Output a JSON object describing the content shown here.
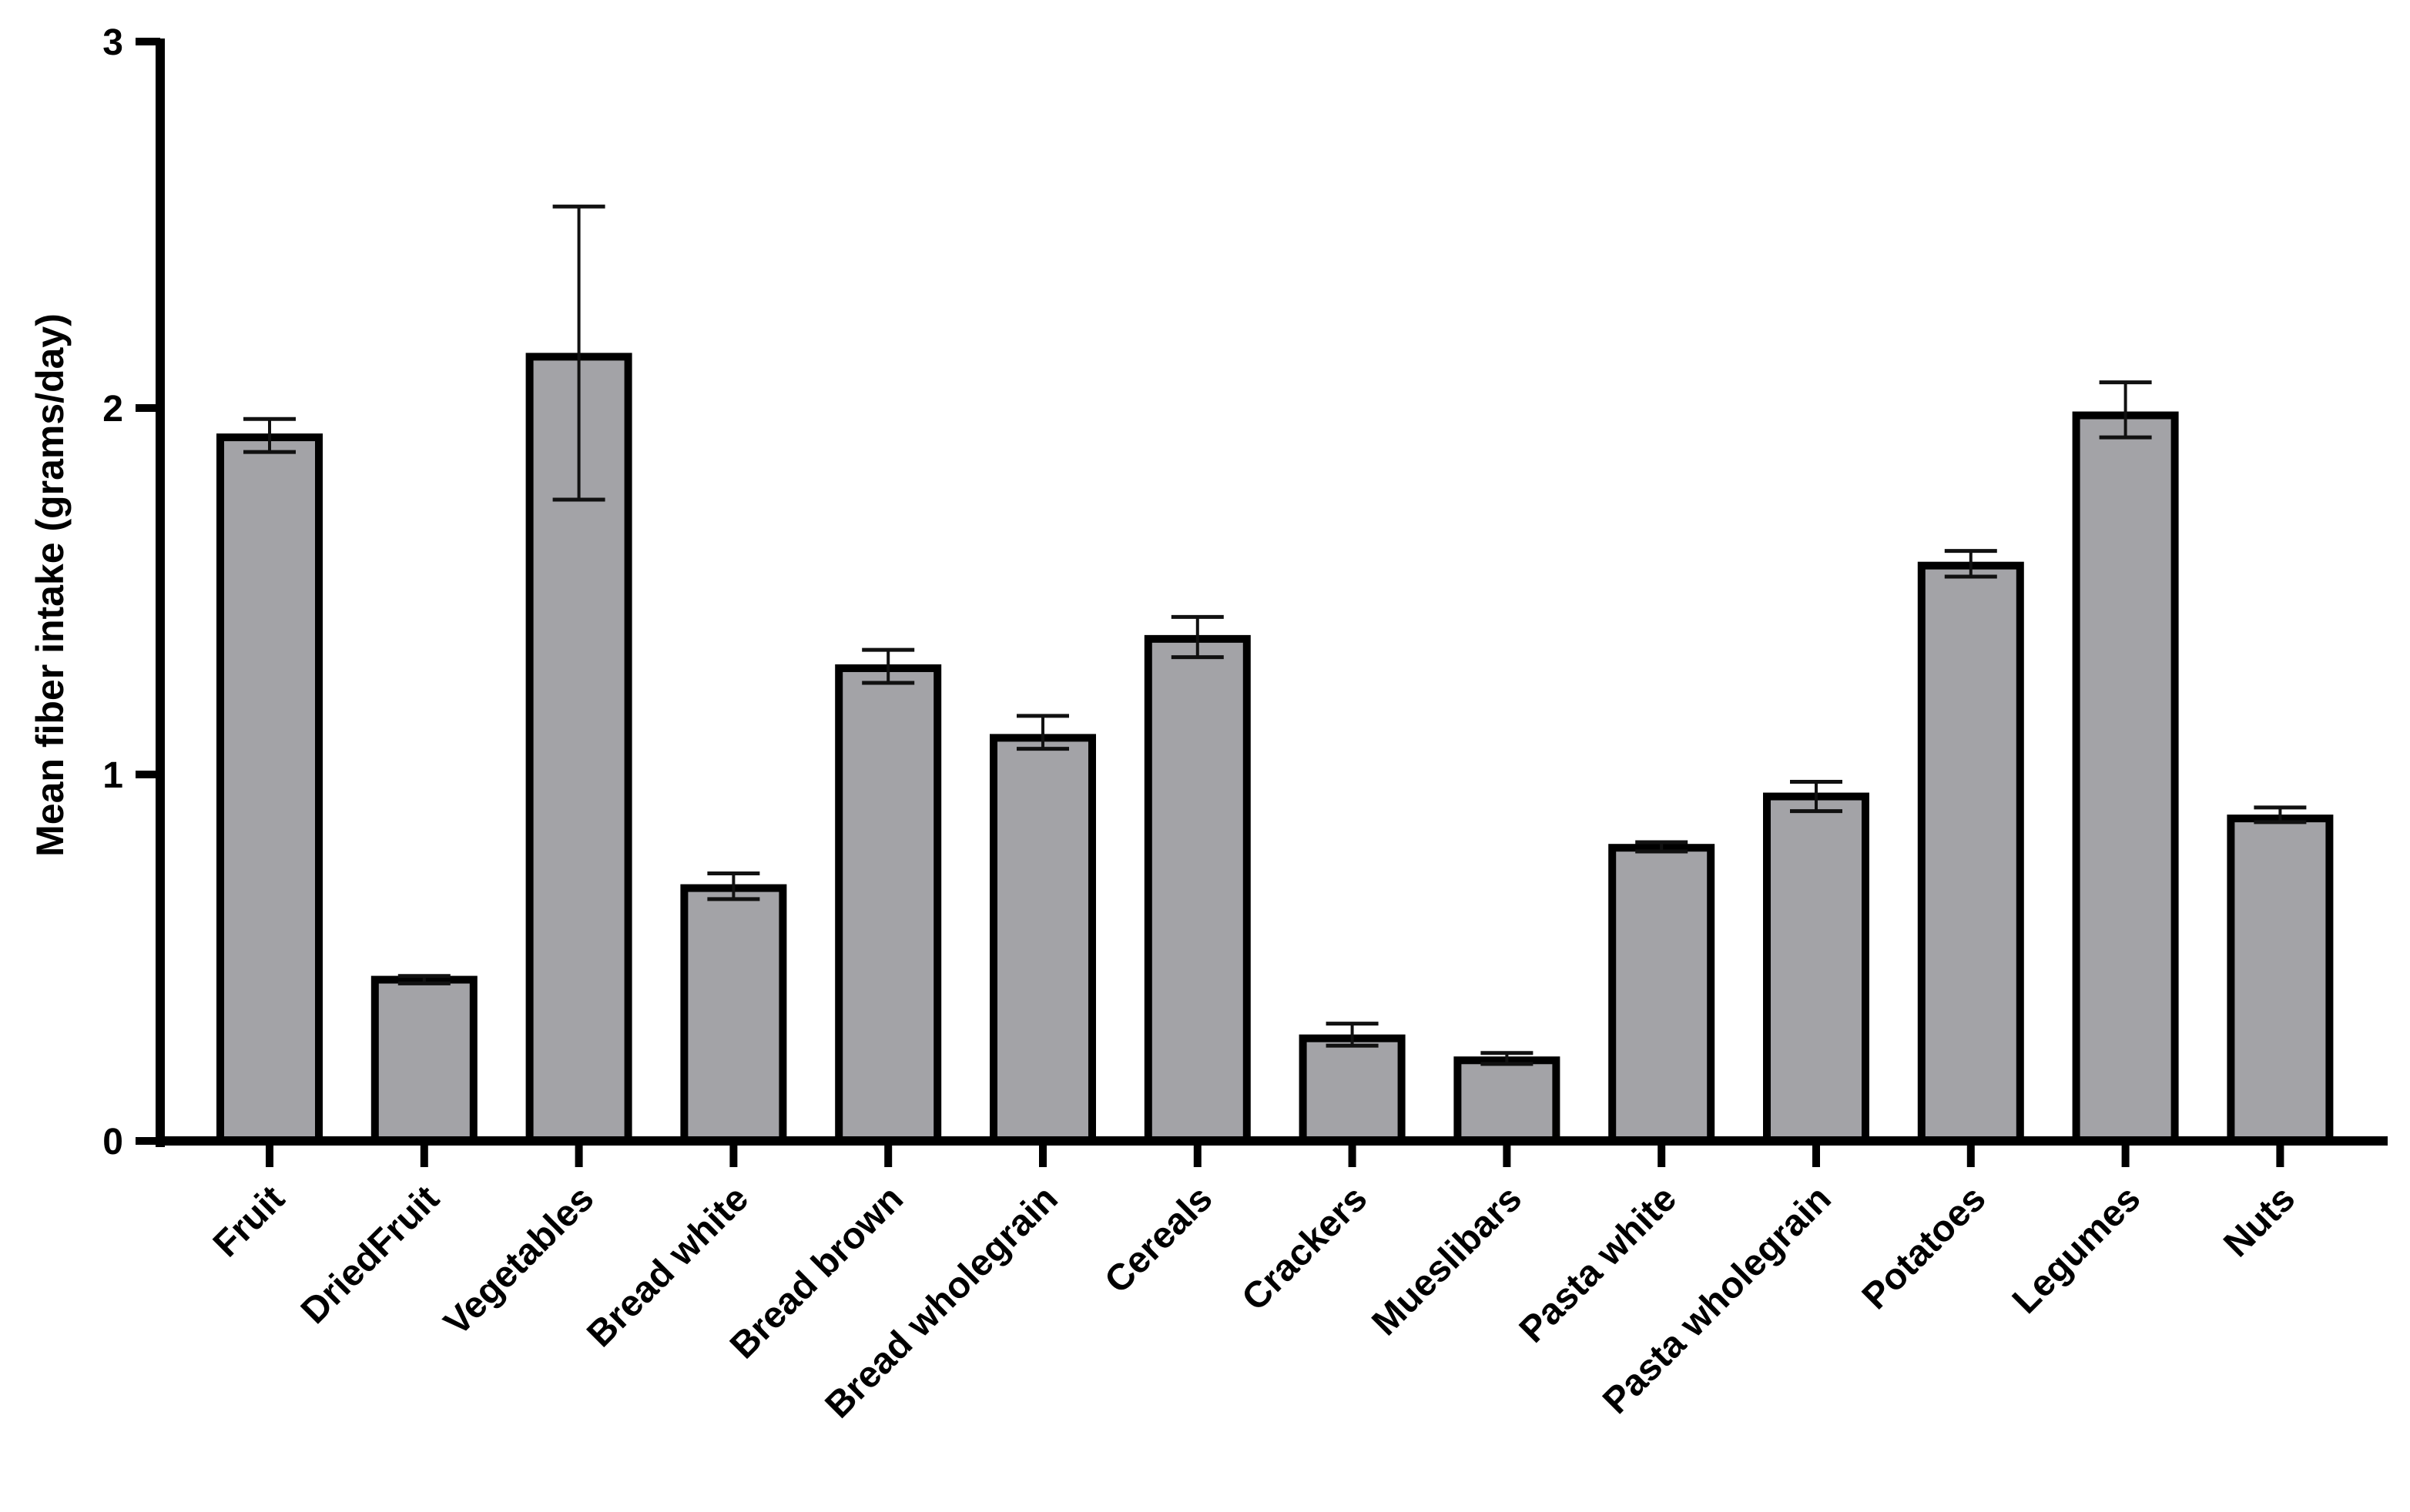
{
  "chart_data": {
    "type": "bar",
    "title": "",
    "xlabel": "",
    "ylabel": "Mean fiber  intake (grams/day)",
    "ylim": [
      0,
      3
    ],
    "yticks": [
      "0",
      "1",
      "2",
      "3"
    ],
    "grid": false,
    "bar_color": "#a3a3a7",
    "edge_color": "#000000",
    "categories": [
      "Fruit",
      "DriedFruit",
      "Vegetables",
      "Bread white",
      "Bread brown",
      "Bread wholegrain",
      "Cereals",
      "Crackers",
      "Mueslibars",
      "Pasta white",
      "Pasta wholegrain",
      "Potatoes",
      "Legumes",
      "Nuts"
    ],
    "values": [
      1.92,
      0.44,
      2.14,
      0.69,
      1.29,
      1.1,
      1.37,
      0.28,
      0.22,
      0.8,
      0.94,
      1.57,
      1.98,
      0.88
    ],
    "error_upper": [
      1.97,
      0.45,
      2.55,
      0.73,
      1.34,
      1.16,
      1.43,
      0.32,
      0.24,
      0.815,
      0.98,
      1.61,
      2.07,
      0.91
    ],
    "error_lower": [
      1.88,
      0.43,
      1.75,
      0.66,
      1.25,
      1.07,
      1.32,
      0.26,
      0.21,
      0.79,
      0.9,
      1.54,
      1.92,
      0.87
    ]
  }
}
